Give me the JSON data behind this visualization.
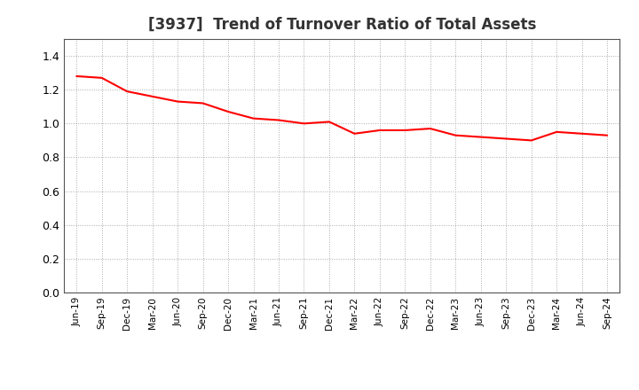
{
  "title": "[3937]  Trend of Turnover Ratio of Total Assets",
  "title_fontsize": 12,
  "title_fontweight": "bold",
  "line_color": "#FF0000",
  "line_width": 1.5,
  "background_color": "#FFFFFF",
  "grid_color": "#AAAAAA",
  "ylim": [
    0.0,
    1.5
  ],
  "yticks": [
    0.0,
    0.2,
    0.4,
    0.6,
    0.8,
    1.0,
    1.2,
    1.4
  ],
  "x_labels": [
    "Jun-19",
    "Sep-19",
    "Dec-19",
    "Mar-20",
    "Jun-20",
    "Sep-20",
    "Dec-20",
    "Mar-21",
    "Jun-21",
    "Sep-21",
    "Dec-21",
    "Mar-22",
    "Jun-22",
    "Sep-22",
    "Dec-22",
    "Mar-23",
    "Jun-23",
    "Sep-23",
    "Dec-23",
    "Mar-24",
    "Jun-24",
    "Sep-24"
  ],
  "values": [
    1.28,
    1.27,
    1.19,
    1.16,
    1.13,
    1.12,
    1.07,
    1.03,
    1.02,
    1.0,
    1.01,
    0.94,
    0.96,
    0.96,
    0.97,
    0.93,
    0.92,
    0.91,
    0.9,
    0.95,
    0.94,
    0.93
  ]
}
